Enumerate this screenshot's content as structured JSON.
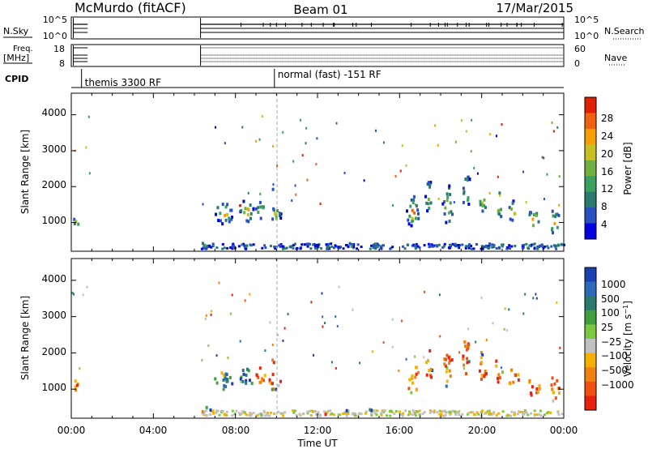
{
  "header": {
    "station": "McMurdo (fitACF)",
    "beam": "Beam 01",
    "date": "17/Mar/2015"
  },
  "strips": {
    "nsky_label": "N.Sky",
    "nsearch_label": "N.Search",
    "freq_label_line1": "Freq.",
    "freq_label_line2": "[MHz]",
    "nave_label": "Nave",
    "cpid_label": "CPID",
    "nsky_ticks": [
      "10^5",
      "10^0"
    ],
    "nsearch_ticks": [
      "10^5",
      "10^0"
    ],
    "freq_ticks": [
      "18",
      "8"
    ],
    "nave_ticks": [
      "60",
      "0"
    ],
    "cpid_modes": [
      {
        "label": "themis 3300 RF",
        "start": 0.5,
        "end": 9.9
      },
      {
        "label": "normal (fast) -151 RF",
        "start": 9.9,
        "end": 24
      }
    ]
  },
  "chart_data": [
    {
      "type": "heatmap",
      "name": "power",
      "xlabel": "",
      "ylabel": "Slant Range [km]",
      "xlim": [
        0,
        24
      ],
      "ylim": [
        200,
        4600
      ],
      "yticks": [
        "1000",
        "2000",
        "3000",
        "4000"
      ],
      "colorbar": {
        "label": "Power [dB]",
        "range": [
          0,
          32
        ],
        "ticks": [
          "4",
          "8",
          "12",
          "16",
          "20",
          "24",
          "28"
        ],
        "colors": [
          "#0000e0",
          "#2850c0",
          "#2a7a70",
          "#3aa060",
          "#70b040",
          "#c8c020",
          "#f5a000",
          "#f06010",
          "#e02000"
        ]
      }
    },
    {
      "type": "heatmap",
      "name": "velocity",
      "xlabel": "Time UT",
      "ylabel": "Slant Range [km]",
      "xlim": [
        0,
        24
      ],
      "ylim": [
        200,
        4600
      ],
      "xticks": [
        "00:00",
        "04:00",
        "08:00",
        "12:00",
        "16:00",
        "20:00",
        "00:00"
      ],
      "yticks": [
        "1000",
        "2000",
        "3000",
        "4000"
      ],
      "colorbar": {
        "label": "Velocity [m s^-1]",
        "ticks": [
          "1000",
          "500",
          "100",
          "25",
          "−25",
          "−100",
          "−500",
          "−1000"
        ],
        "colors": [
          "#1a3fb0",
          "#2a6ab8",
          "#2a7a70",
          "#40a040",
          "#7cc840",
          "#c0c0c0",
          "#f5b000",
          "#f08010",
          "#f05010",
          "#e82010"
        ]
      }
    }
  ]
}
